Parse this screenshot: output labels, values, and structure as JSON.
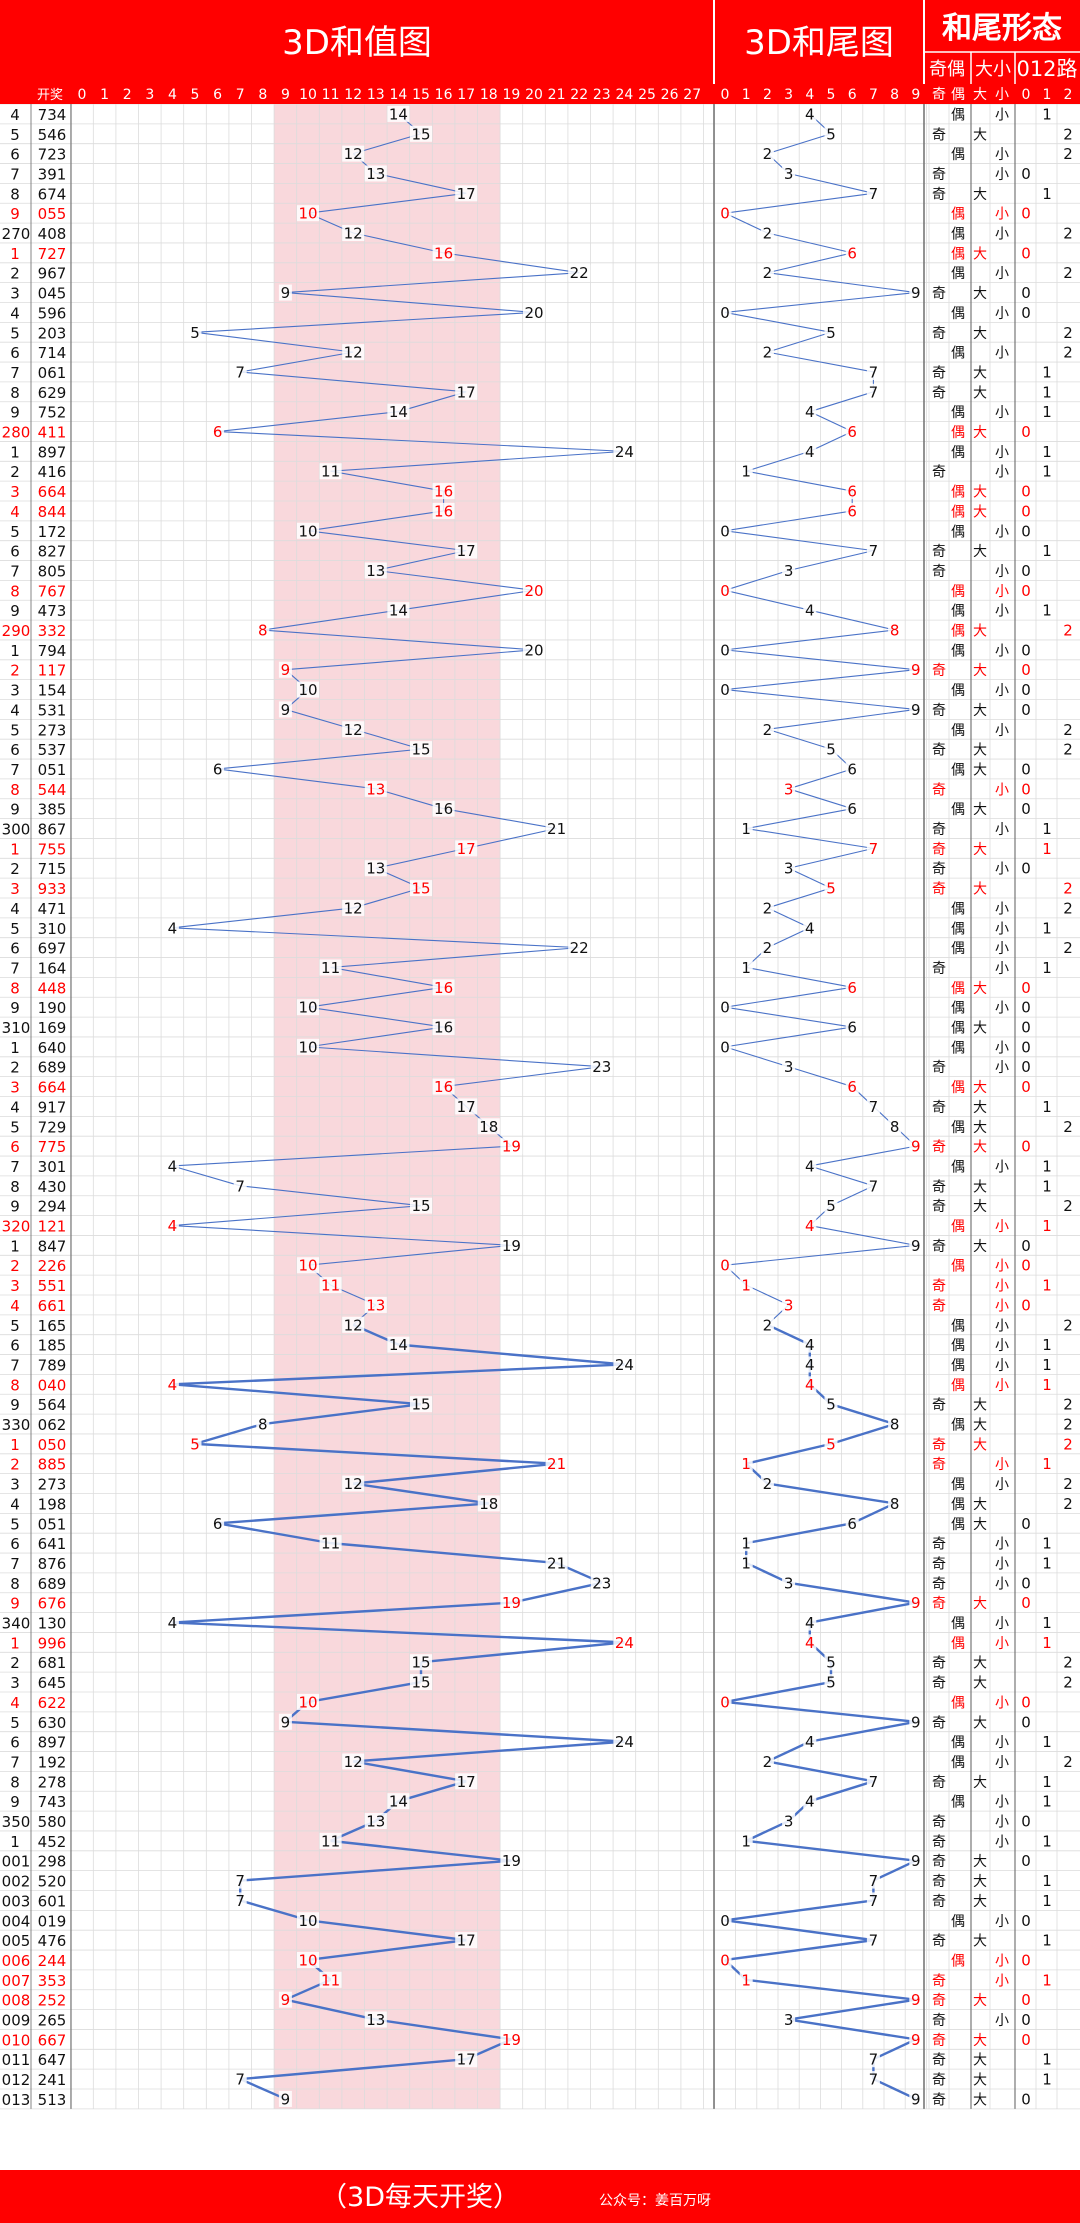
{
  "header": {
    "sum_title": "3D和值图",
    "tail_title": "3D和尾图",
    "shape_title": "和尾形态",
    "odd_even_label": "奇偶",
    "big_small_label": "大小",
    "route_label": "012路",
    "issue_col_label": "",
    "draw_col_label": "开奖",
    "odd_label": "奇",
    "even_label": "偶",
    "big_label": "大",
    "small_label": "小"
  },
  "footer": {
    "slogan": "（3D每天开奖）",
    "account": "公众号：姜百万呀"
  },
  "colors": {
    "red": "#ff0000",
    "band": "#f9d8dc",
    "line": "#4a72c7",
    "grid": "#dcdcdc",
    "text": "#111111"
  },
  "chart_data": {
    "type": "line",
    "title": "3D和值图 / 3D和尾图 / 和尾形态",
    "sum_axis": [
      0,
      1,
      2,
      3,
      4,
      5,
      6,
      7,
      8,
      9,
      10,
      11,
      12,
      13,
      14,
      15,
      16,
      17,
      18,
      19,
      20,
      21,
      22,
      23,
      24,
      25,
      26,
      27
    ],
    "tail_axis": [
      0,
      1,
      2,
      3,
      4,
      5,
      6,
      7,
      8,
      9
    ],
    "highlight_band": [
      9,
      18
    ],
    "rows": [
      {
        "issue": "4",
        "draw": "734",
        "red": false
      },
      {
        "issue": "5",
        "draw": "546",
        "red": false
      },
      {
        "issue": "6",
        "draw": "723",
        "red": false
      },
      {
        "issue": "7",
        "draw": "391",
        "red": false
      },
      {
        "issue": "8",
        "draw": "674",
        "red": false
      },
      {
        "issue": "9",
        "draw": "055",
        "red": true
      },
      {
        "issue": "270",
        "draw": "408",
        "red": false
      },
      {
        "issue": "1",
        "draw": "727",
        "red": true
      },
      {
        "issue": "2",
        "draw": "967",
        "red": false
      },
      {
        "issue": "3",
        "draw": "045",
        "red": false
      },
      {
        "issue": "4",
        "draw": "596",
        "red": false
      },
      {
        "issue": "5",
        "draw": "203",
        "red": false
      },
      {
        "issue": "6",
        "draw": "714",
        "red": false
      },
      {
        "issue": "7",
        "draw": "061",
        "red": false
      },
      {
        "issue": "8",
        "draw": "629",
        "red": false
      },
      {
        "issue": "9",
        "draw": "752",
        "red": false
      },
      {
        "issue": "280",
        "draw": "411",
        "red": true
      },
      {
        "issue": "1",
        "draw": "897",
        "red": false
      },
      {
        "issue": "2",
        "draw": "416",
        "red": false
      },
      {
        "issue": "3",
        "draw": "664",
        "red": true
      },
      {
        "issue": "4",
        "draw": "844",
        "red": true
      },
      {
        "issue": "5",
        "draw": "172",
        "red": false
      },
      {
        "issue": "6",
        "draw": "827",
        "red": false
      },
      {
        "issue": "7",
        "draw": "805",
        "red": false
      },
      {
        "issue": "8",
        "draw": "767",
        "red": true
      },
      {
        "issue": "9",
        "draw": "473",
        "red": false
      },
      {
        "issue": "290",
        "draw": "332",
        "red": true
      },
      {
        "issue": "1",
        "draw": "794",
        "red": false
      },
      {
        "issue": "2",
        "draw": "117",
        "red": true
      },
      {
        "issue": "3",
        "draw": "154",
        "red": false
      },
      {
        "issue": "4",
        "draw": "531",
        "red": false
      },
      {
        "issue": "5",
        "draw": "273",
        "red": false
      },
      {
        "issue": "6",
        "draw": "537",
        "red": false
      },
      {
        "issue": "7",
        "draw": "051",
        "red": false
      },
      {
        "issue": "8",
        "draw": "544",
        "red": true
      },
      {
        "issue": "9",
        "draw": "385",
        "red": false
      },
      {
        "issue": "300",
        "draw": "867",
        "red": false
      },
      {
        "issue": "1",
        "draw": "755",
        "red": true
      },
      {
        "issue": "2",
        "draw": "715",
        "red": false
      },
      {
        "issue": "3",
        "draw": "933",
        "red": true
      },
      {
        "issue": "4",
        "draw": "471",
        "red": false
      },
      {
        "issue": "5",
        "draw": "310",
        "red": false
      },
      {
        "issue": "6",
        "draw": "697",
        "red": false
      },
      {
        "issue": "7",
        "draw": "164",
        "red": false
      },
      {
        "issue": "8",
        "draw": "448",
        "red": true
      },
      {
        "issue": "9",
        "draw": "190",
        "red": false
      },
      {
        "issue": "310",
        "draw": "169",
        "red": false
      },
      {
        "issue": "1",
        "draw": "640",
        "red": false
      },
      {
        "issue": "2",
        "draw": "689",
        "red": false
      },
      {
        "issue": "3",
        "draw": "664",
        "red": true
      },
      {
        "issue": "4",
        "draw": "917",
        "red": false
      },
      {
        "issue": "5",
        "draw": "729",
        "red": false
      },
      {
        "issue": "6",
        "draw": "775",
        "red": true
      },
      {
        "issue": "7",
        "draw": "301",
        "red": false
      },
      {
        "issue": "8",
        "draw": "430",
        "red": false
      },
      {
        "issue": "9",
        "draw": "294",
        "red": false
      },
      {
        "issue": "320",
        "draw": "121",
        "red": true
      },
      {
        "issue": "1",
        "draw": "847",
        "red": false
      },
      {
        "issue": "2",
        "draw": "226",
        "red": true
      },
      {
        "issue": "3",
        "draw": "551",
        "red": true
      },
      {
        "issue": "4",
        "draw": "661",
        "red": true
      },
      {
        "issue": "5",
        "draw": "165",
        "red": false
      },
      {
        "issue": "6",
        "draw": "185",
        "red": false
      },
      {
        "issue": "7",
        "draw": "789",
        "red": false
      },
      {
        "issue": "8",
        "draw": "040",
        "red": true
      },
      {
        "issue": "9",
        "draw": "564",
        "red": false
      },
      {
        "issue": "330",
        "draw": "062",
        "red": false
      },
      {
        "issue": "1",
        "draw": "050",
        "red": true
      },
      {
        "issue": "2",
        "draw": "885",
        "red": true
      },
      {
        "issue": "3",
        "draw": "273",
        "red": false
      },
      {
        "issue": "4",
        "draw": "198",
        "red": false
      },
      {
        "issue": "5",
        "draw": "051",
        "red": false
      },
      {
        "issue": "6",
        "draw": "641",
        "red": false
      },
      {
        "issue": "7",
        "draw": "876",
        "red": false
      },
      {
        "issue": "8",
        "draw": "689",
        "red": false
      },
      {
        "issue": "9",
        "draw": "676",
        "red": true
      },
      {
        "issue": "340",
        "draw": "130",
        "red": false
      },
      {
        "issue": "1",
        "draw": "996",
        "red": true
      },
      {
        "issue": "2",
        "draw": "681",
        "red": false
      },
      {
        "issue": "3",
        "draw": "645",
        "red": false
      },
      {
        "issue": "4",
        "draw": "622",
        "red": true
      },
      {
        "issue": "5",
        "draw": "630",
        "red": false
      },
      {
        "issue": "6",
        "draw": "897",
        "red": false
      },
      {
        "issue": "7",
        "draw": "192",
        "red": false
      },
      {
        "issue": "8",
        "draw": "278",
        "red": false
      },
      {
        "issue": "9",
        "draw": "743",
        "red": false
      },
      {
        "issue": "350",
        "draw": "580",
        "red": false
      },
      {
        "issue": "1",
        "draw": "452",
        "red": false
      },
      {
        "issue": "001",
        "draw": "298",
        "red": false
      },
      {
        "issue": "002",
        "draw": "520",
        "red": false
      },
      {
        "issue": "003",
        "draw": "601",
        "red": false
      },
      {
        "issue": "004",
        "draw": "019",
        "red": false
      },
      {
        "issue": "005",
        "draw": "476",
        "red": false
      },
      {
        "issue": "006",
        "draw": "244",
        "red": true
      },
      {
        "issue": "007",
        "draw": "353",
        "red": true
      },
      {
        "issue": "008",
        "draw": "252",
        "red": true
      },
      {
        "issue": "009",
        "draw": "265",
        "red": false
      },
      {
        "issue": "010",
        "draw": "667",
        "red": true
      },
      {
        "issue": "011",
        "draw": "647",
        "red": false
      },
      {
        "issue": "012",
        "draw": "241",
        "red": false
      },
      {
        "issue": "013",
        "draw": "513",
        "red": false
      }
    ]
  }
}
